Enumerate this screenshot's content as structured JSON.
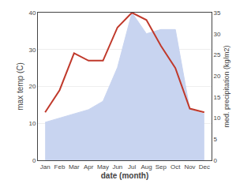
{
  "chart_data": {
    "type": "line",
    "categories": [
      "Jan",
      "Feb",
      "Mar",
      "Apr",
      "May",
      "Jun",
      "Jul",
      "Aug",
      "Sep",
      "Oct",
      "Nov",
      "Dec"
    ],
    "series": [
      {
        "type": "area",
        "axis": "y2",
        "color": "#c8d4f0",
        "values": [
          9,
          10,
          11,
          12,
          14,
          22,
          35,
          30,
          31,
          31,
          12,
          11
        ]
      },
      {
        "type": "line",
        "color": "#c0392b",
        "values": [
          13,
          19,
          29,
          27,
          27,
          36,
          40,
          38,
          31,
          25,
          14,
          13
        ]
      }
    ],
    "xlabel": "date (month)",
    "ylabel": "max temp (C)",
    "y2label": "med. precipitation (kg/m2)",
    "ylim": [
      0,
      40
    ],
    "yticks": [
      0,
      10,
      20,
      30,
      40
    ],
    "y2lim": [
      0,
      35
    ],
    "y2ticks": [
      0,
      5,
      10,
      15,
      20,
      25,
      30,
      35
    ],
    "grid": true
  }
}
